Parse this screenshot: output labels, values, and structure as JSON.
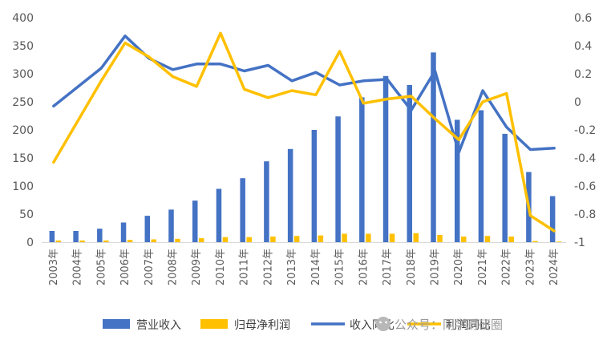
{
  "chart_data": {
    "type": "bar",
    "categories": [
      "2003年",
      "2004年",
      "2005年",
      "2006年",
      "2007年",
      "2008年",
      "2009年",
      "2010年",
      "2011年",
      "2012年",
      "2013年",
      "2014年",
      "2015年",
      "2016年",
      "2017年",
      "2018年",
      "2019年",
      "2020年",
      "2021年",
      "2022年",
      "2023年",
      "2024年"
    ],
    "series": [
      {
        "name": "营业收入",
        "type": "bar",
        "axis": "left",
        "color": "#4472C4",
        "values": [
          20,
          20,
          24,
          35,
          47,
          58,
          74,
          95,
          114,
          144,
          166,
          200,
          224,
          258,
          296,
          280,
          338,
          218,
          235,
          193,
          125,
          82
        ]
      },
      {
        "name": "归母净利润",
        "type": "bar",
        "axis": "left",
        "color": "#FFC000",
        "values": [
          3,
          3,
          3,
          4,
          5,
          6,
          7,
          9,
          9,
          10,
          11,
          12,
          15,
          15,
          15,
          16,
          13,
          10,
          11,
          10,
          2,
          1
        ]
      },
      {
        "name": "收入同比",
        "type": "line",
        "axis": "right",
        "color": "#4472C4",
        "values": [
          -0.03,
          null,
          0.24,
          0.47,
          0.31,
          0.23,
          0.27,
          0.27,
          0.22,
          0.26,
          0.15,
          0.21,
          0.12,
          0.15,
          0.16,
          -0.06,
          0.22,
          -0.36,
          0.08,
          -0.18,
          -0.34,
          -0.33
        ]
      },
      {
        "name": "利润同比",
        "type": "line",
        "axis": "right",
        "color": "#FFC000",
        "values": [
          -0.43,
          null,
          0.15,
          0.42,
          0.32,
          0.18,
          0.11,
          0.49,
          0.09,
          0.03,
          0.08,
          0.05,
          0.36,
          -0.01,
          0.02,
          0.04,
          -0.12,
          -0.27,
          0.0,
          0.06,
          -0.81,
          -0.92
        ]
      }
    ],
    "left_axis": {
      "min": 0,
      "max": 400,
      "ticks": [
        "0",
        "50",
        "100",
        "150",
        "200",
        "250",
        "300",
        "350",
        "400"
      ]
    },
    "right_axis": {
      "min": -1,
      "max": 0.6,
      "ticks": [
        "-1",
        "-0.8",
        "-0.6",
        "-0.4",
        "-0.2",
        "0",
        "0.2",
        "0.4",
        "0.6"
      ]
    },
    "legend": [
      "营业收入",
      "归母净利润",
      "收入同比",
      "利润同比"
    ],
    "legend_position": "bottom",
    "grid": false,
    "title": "",
    "xlabel": "",
    "ylabel": ""
  },
  "watermark": {
    "text": "公众号：同学财研圈",
    "icon": "wechat-icon"
  }
}
